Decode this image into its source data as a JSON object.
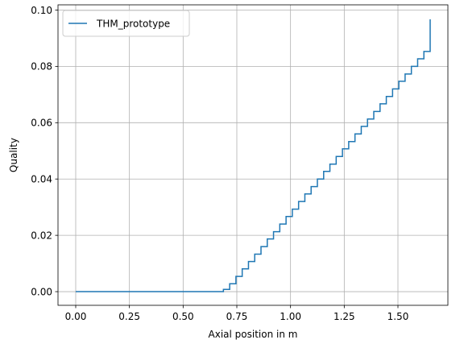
{
  "chart_data": {
    "type": "line",
    "title": "",
    "xlabel": "Axial position in m",
    "ylabel": "Quality",
    "xlim": [
      -0.0825,
      1.7325
    ],
    "ylim": [
      -0.00485,
      0.10185
    ],
    "grid": true,
    "legend_position": "top-left",
    "x_ticks": [
      0.0,
      0.25,
      0.5,
      0.75,
      1.0,
      1.25,
      1.5
    ],
    "x_tick_labels": [
      "0.00",
      "0.25",
      "0.50",
      "0.75",
      "1.00",
      "1.25",
      "1.50"
    ],
    "y_ticks": [
      0.0,
      0.02,
      0.04,
      0.06,
      0.08,
      0.1
    ],
    "y_tick_labels": [
      "0.00",
      "0.02",
      "0.04",
      "0.06",
      "0.08",
      "0.10"
    ],
    "step_mode": "post",
    "series": [
      {
        "name": "THM_prototype",
        "color": "#1f77b4",
        "x": [
          0.0,
          0.6875,
          0.7167,
          0.7458,
          0.775,
          0.8042,
          0.8333,
          0.8625,
          0.8917,
          0.9208,
          0.95,
          0.9792,
          1.0083,
          1.0375,
          1.0667,
          1.0958,
          1.125,
          1.1542,
          1.1833,
          1.2125,
          1.2417,
          1.2708,
          1.3,
          1.3292,
          1.3583,
          1.3875,
          1.4167,
          1.4458,
          1.475,
          1.5042,
          1.5333,
          1.5625,
          1.5917,
          1.6208,
          1.65
        ],
        "y": [
          0.0,
          0.0008,
          0.0028,
          0.0054,
          0.0081,
          0.0107,
          0.0133,
          0.016,
          0.0187,
          0.0213,
          0.024,
          0.0267,
          0.0293,
          0.032,
          0.0347,
          0.0373,
          0.04,
          0.0427,
          0.0453,
          0.048,
          0.0507,
          0.0533,
          0.056,
          0.0587,
          0.0613,
          0.064,
          0.0667,
          0.0693,
          0.072,
          0.0747,
          0.0773,
          0.08,
          0.0827,
          0.0853,
          0.0967
        ]
      }
    ]
  }
}
